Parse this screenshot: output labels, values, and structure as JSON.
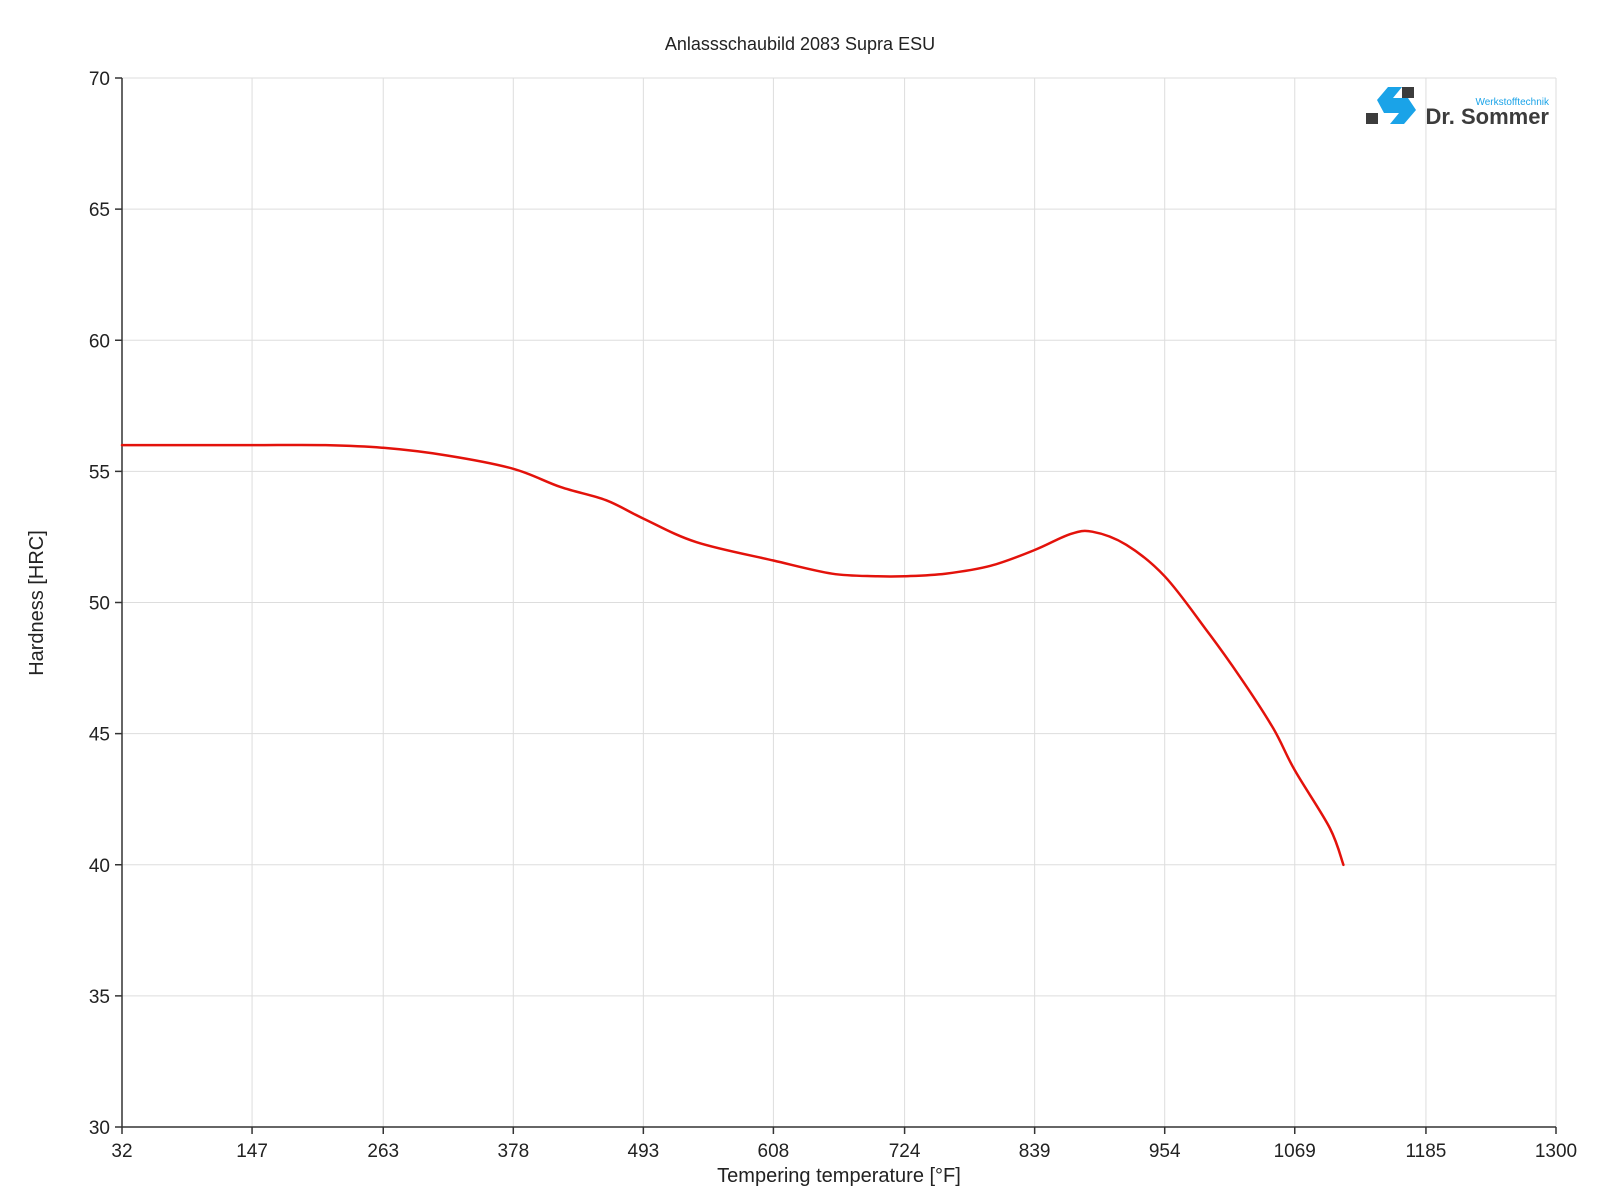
{
  "logo": {
    "brand": "Dr. Sommer",
    "tagline": "Werkstofftechnik",
    "colors": {
      "blue": "#1aa3e8",
      "dark": "#3c3c3c"
    }
  },
  "chart_data": {
    "type": "line",
    "title": "Anlassschaubild 2083 Supra ESU",
    "xlabel": "Tempering temperature [°F]",
    "ylabel": "Hardness [HRC]",
    "xlim": [
      32,
      1300
    ],
    "ylim": [
      30,
      70
    ],
    "x_ticks": [
      "32",
      "147",
      "263",
      "378",
      "493",
      "608",
      "724",
      "839",
      "954",
      "1069",
      "1185",
      "1300"
    ],
    "y_ticks": [
      "30",
      "35",
      "40",
      "45",
      "50",
      "55",
      "60",
      "65",
      "70"
    ],
    "grid": true,
    "series": [
      {
        "color": "#e3120b",
        "x": [
          32,
          100,
          150,
          212,
          263,
          320,
          378,
          420,
          460,
          493,
          540,
          608,
          660,
          700,
          724,
          760,
          800,
          839,
          870,
          890,
          920,
          954,
          990,
          1020,
          1050,
          1069,
          1100,
          1112
        ],
        "y": [
          56.0,
          56.0,
          56.0,
          56.0,
          55.9,
          55.6,
          55.1,
          54.4,
          53.9,
          53.2,
          52.3,
          51.6,
          51.1,
          51.0,
          51.0,
          51.1,
          51.4,
          52.0,
          52.6,
          52.7,
          52.2,
          51.0,
          49.0,
          47.2,
          45.2,
          43.6,
          41.4,
          40.0
        ]
      }
    ]
  }
}
